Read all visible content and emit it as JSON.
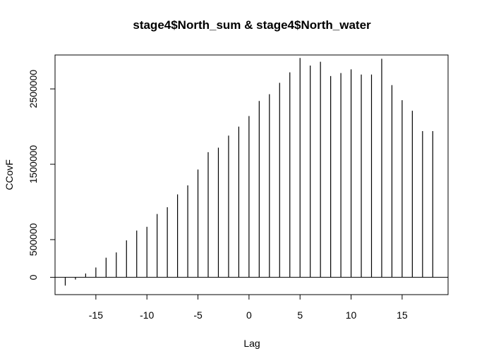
{
  "chart_data": {
    "type": "bar",
    "title": "stage4$North_sum & stage4$North_water",
    "xlabel": "Lag",
    "ylabel": "CCovF",
    "xlim": [
      -19,
      19.5
    ],
    "ylim": [
      -230000,
      2950000
    ],
    "x_ticks": [
      -15,
      -10,
      -5,
      0,
      5,
      10,
      15
    ],
    "y_ticks": [
      0,
      500000,
      1500000,
      2500000
    ],
    "y_tick_labels": [
      "0",
      "500000",
      "1500000",
      "2500000"
    ],
    "x_tick_labels": [
      "-15",
      "-10",
      "-5",
      "0",
      "5",
      "10",
      "15"
    ],
    "zero_line": true,
    "grid": false,
    "x": [
      -18,
      -17,
      -16,
      -15,
      -14,
      -13,
      -12,
      -11,
      -10,
      -9,
      -8,
      -7,
      -6,
      -5,
      -4,
      -3,
      -2,
      -1,
      0,
      1,
      2,
      3,
      4,
      5,
      6,
      7,
      8,
      9,
      10,
      11,
      12,
      13,
      14,
      15,
      16,
      17,
      18
    ],
    "values": [
      -110000,
      -30000,
      50000,
      130000,
      260000,
      330000,
      490000,
      620000,
      670000,
      840000,
      930000,
      1100000,
      1220000,
      1430000,
      1660000,
      1720000,
      1880000,
      2000000,
      2140000,
      2340000,
      2430000,
      2580000,
      2720000,
      2910000,
      2810000,
      2860000,
      2670000,
      2710000,
      2760000,
      2690000,
      2690000,
      2900000,
      2550000,
      2350000,
      2210000,
      1940000,
      1940000
    ]
  }
}
